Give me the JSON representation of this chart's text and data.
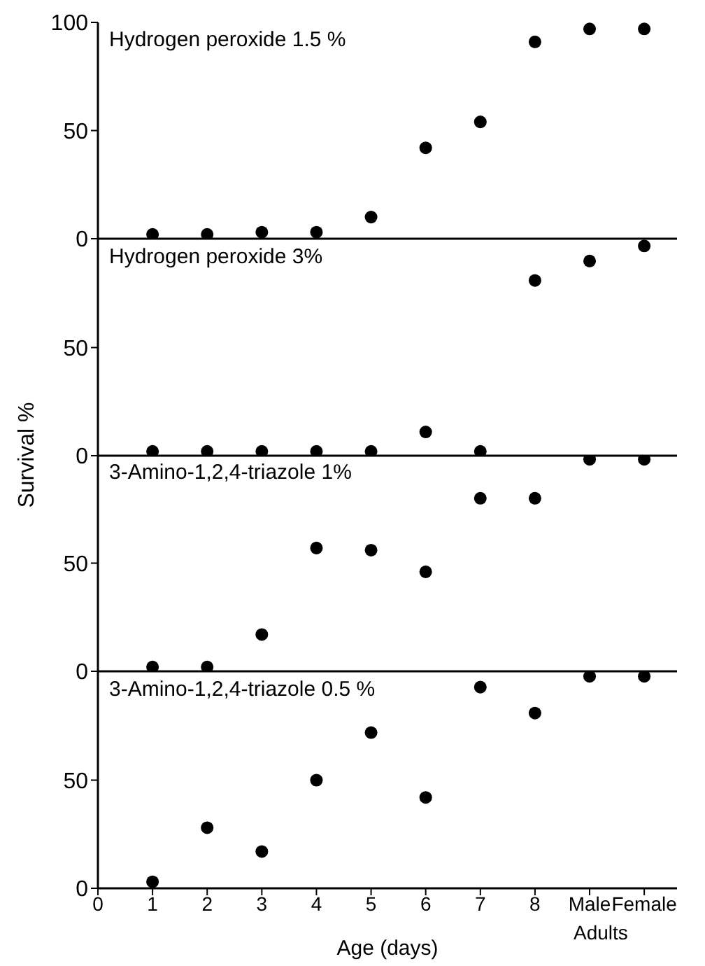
{
  "chart_data": [
    {
      "type": "scatter",
      "title": "Hydrogen peroxide 1.5 %",
      "x": [
        1,
        2,
        3,
        4,
        5,
        6,
        7,
        8,
        9,
        10
      ],
      "values": [
        2,
        2,
        3,
        3,
        10,
        42,
        54,
        91,
        97,
        97
      ],
      "color": "#000000",
      "marker": "circle",
      "xlim": [
        0,
        10.6
      ],
      "ylim": [
        0,
        100
      ],
      "yticks": [
        0,
        50,
        100
      ],
      "tick_labels": "y",
      "grid": false,
      "legend": false
    },
    {
      "type": "scatter",
      "title": "Hydrogen peroxide 3%",
      "ylabel": "Survival %",
      "x": [
        1,
        2,
        3,
        4,
        5,
        6,
        7,
        8,
        9,
        10
      ],
      "values": [
        2,
        2,
        2,
        2,
        2,
        11,
        2,
        81,
        90,
        97
      ],
      "color": "#000000",
      "marker": "circle",
      "xlim": [
        0,
        10.6
      ],
      "ylim": [
        0,
        100
      ],
      "yticks": [
        0,
        50
      ],
      "tick_labels": "y",
      "grid": false,
      "legend": false
    },
    {
      "type": "scatter",
      "title": "3-Amino-1,2,4-triazole 1%",
      "x": [
        1,
        2,
        3,
        4,
        5,
        6,
        7,
        8,
        9,
        10
      ],
      "values": [
        2,
        2,
        17,
        57,
        56,
        46,
        80,
        80,
        98,
        98
      ],
      "color": "#000000",
      "marker": "circle",
      "xlim": [
        0,
        10.6
      ],
      "ylim": [
        0,
        100
      ],
      "yticks": [
        0,
        50
      ],
      "tick_labels": "y",
      "grid": false,
      "legend": false
    },
    {
      "type": "scatter",
      "title": "3-Amino-1,2,4-triazole 0.5 %",
      "xlabel": "Age (days)",
      "annotations": [
        "Adults"
      ],
      "x": [
        1,
        2,
        3,
        4,
        5,
        6,
        7,
        8,
        9,
        10
      ],
      "values": [
        3,
        28,
        17,
        50,
        72,
        42,
        93,
        81,
        98,
        98
      ],
      "color": "#000000",
      "marker": "circle",
      "xlim": [
        0,
        10.6
      ],
      "xticks": [
        0,
        1,
        2,
        3,
        4,
        5,
        6,
        7,
        8,
        {
          "value": 9,
          "label": "Male"
        },
        {
          "value": 10,
          "label": "Female"
        }
      ],
      "ylim": [
        0,
        100
      ],
      "yticks": [
        0,
        50
      ],
      "grid": false,
      "legend": false
    }
  ]
}
